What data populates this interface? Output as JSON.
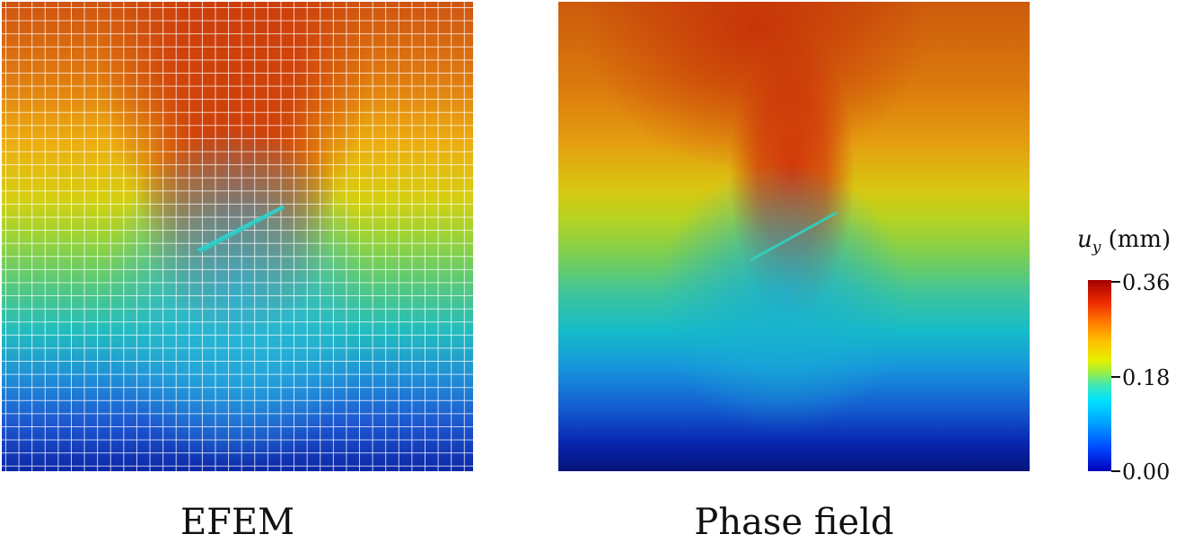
{
  "panels": [
    {
      "id": "efem",
      "caption": "EFEM"
    },
    {
      "id": "phase-field",
      "caption": "Phase field"
    }
  ],
  "colorbar": {
    "symbol": "u",
    "subscript": "y",
    "unit": "(mm)",
    "ticks": [
      "0.36",
      "0.18",
      "0.00"
    ],
    "min": 0.0,
    "max": 0.36,
    "colormap": "jet"
  },
  "colors": {
    "max": "#a40000",
    "min": "#0000b8"
  }
}
